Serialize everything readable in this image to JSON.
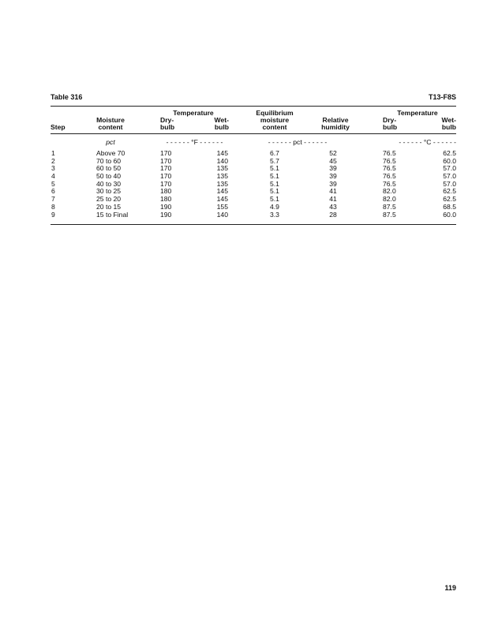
{
  "table_label": "Table 316",
  "code": "T13-F8S",
  "page_number": "119",
  "headers": {
    "step": "Step",
    "moisture_content": [
      "Moisture",
      "content"
    ],
    "temperature_f_group": "Temperature",
    "dry_bulb_f": [
      "Dry-",
      "bulb"
    ],
    "wet_bulb_f": [
      "Wet-",
      "bulb"
    ],
    "equilibrium": [
      "Equilibrium",
      "moisture",
      "content"
    ],
    "relative_humidity": [
      "Relative",
      "humidity"
    ],
    "temperature_c_group": "Temperature",
    "dry_bulb_c": [
      "Dry-",
      "bulb"
    ],
    "wet_bulb_c": [
      "Wet-",
      "bulb"
    ]
  },
  "units": {
    "moisture": "pct",
    "fahrenheit": "- - - - - - °F - - - - - -",
    "pct_span": "- - - - - - pct - - - - - -",
    "celsius": "- - - - - - °C - - - - - -"
  },
  "rows": [
    {
      "step": "1",
      "moisture": "Above 70",
      "dry_f": "170",
      "wet_f": "145",
      "emc": "6.7",
      "rh": "52",
      "dry_c": "76.5",
      "wet_c": "62.5"
    },
    {
      "step": "2",
      "moisture": "70 to 60",
      "dry_f": "170",
      "wet_f": "140",
      "emc": "5.7",
      "rh": "45",
      "dry_c": "76.5",
      "wet_c": "60.0"
    },
    {
      "step": "3",
      "moisture": "60 to 50",
      "dry_f": "170",
      "wet_f": "135",
      "emc": "5.1",
      "rh": "39",
      "dry_c": "76.5",
      "wet_c": "57.0"
    },
    {
      "step": "4",
      "moisture": "50 to 40",
      "dry_f": "170",
      "wet_f": "135",
      "emc": "5.1",
      "rh": "39",
      "dry_c": "76.5",
      "wet_c": "57.0"
    },
    {
      "step": "5",
      "moisture": "40 to 30",
      "dry_f": "170",
      "wet_f": "135",
      "emc": "5.1",
      "rh": "39",
      "dry_c": "76.5",
      "wet_c": "57.0"
    },
    {
      "step": "6",
      "moisture": "30 to 25",
      "dry_f": "180",
      "wet_f": "145",
      "emc": "5.1",
      "rh": "41",
      "dry_c": "82.0",
      "wet_c": "62.5"
    },
    {
      "step": "7",
      "moisture": "25 to 20",
      "dry_f": "180",
      "wet_f": "145",
      "emc": "5.1",
      "rh": "41",
      "dry_c": "82.0",
      "wet_c": "62.5"
    },
    {
      "step": "8",
      "moisture": "20 to 15",
      "dry_f": "190",
      "wet_f": "155",
      "emc": "4.9",
      "rh": "43",
      "dry_c": "87.5",
      "wet_c": "68.5"
    },
    {
      "step": "9",
      "moisture": "15 to Final",
      "dry_f": "190",
      "wet_f": "140",
      "emc": "3.3",
      "rh": "28",
      "dry_c": "87.5",
      "wet_c": "60.0"
    }
  ]
}
